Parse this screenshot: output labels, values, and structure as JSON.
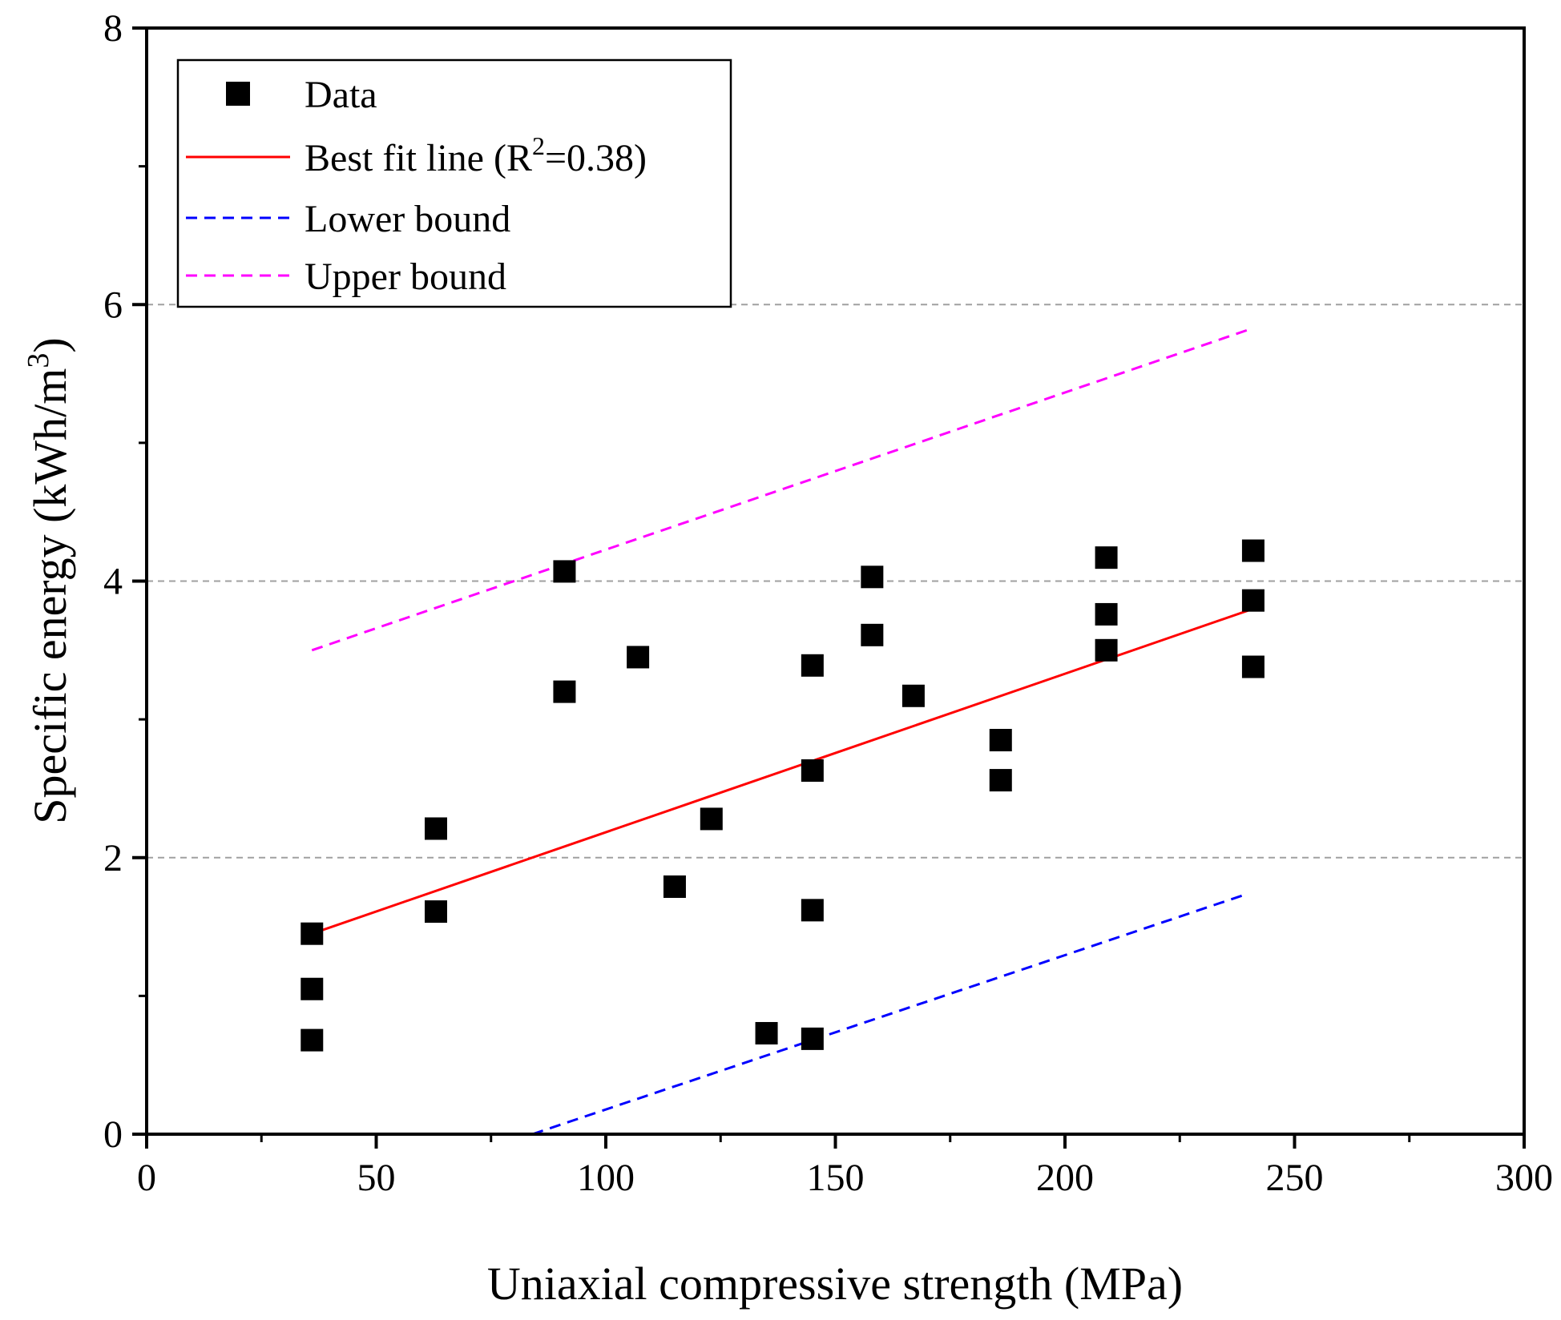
{
  "chart_data": {
    "type": "scatter",
    "xlabel": "Uniaxial compressive strength (MPa)",
    "ylabel": "Specific energy (kWh/m³)",
    "xlim": [
      0,
      300
    ],
    "ylim": [
      0,
      8
    ],
    "x_ticks": [
      "0",
      "50",
      "100",
      "150",
      "200",
      "250",
      "300"
    ],
    "y_ticks": [
      "0",
      "2",
      "4",
      "6",
      "8"
    ],
    "gridlines_y": [
      2,
      4,
      6
    ],
    "legend_position": "top-left",
    "series": [
      {
        "name": "Data",
        "kind": "scatter",
        "marker": "square",
        "color": "#000000",
        "x": [
          36,
          36,
          36,
          63,
          63,
          91,
          91,
          107,
          115,
          123,
          135,
          145,
          145,
          145,
          145,
          158,
          158,
          167,
          186,
          186,
          209,
          209,
          209,
          241,
          241,
          241
        ],
        "y": [
          1.45,
          1.05,
          0.68,
          2.21,
          1.61,
          4.07,
          3.2,
          3.45,
          1.79,
          2.28,
          0.73,
          3.39,
          2.63,
          1.62,
          0.69,
          4.03,
          3.61,
          3.17,
          2.85,
          2.56,
          4.17,
          3.76,
          3.5,
          4.22,
          3.86,
          3.38
        ]
      },
      {
        "name": "Best fit line (R²=0.38)",
        "kind": "line",
        "style": "solid",
        "color": "#ff0000",
        "x": [
          36,
          241
        ],
        "y": [
          1.45,
          3.8
        ]
      },
      {
        "name": "Lower bound",
        "kind": "line",
        "style": "dashed",
        "color": "#0000ff",
        "x": [
          84,
          239
        ],
        "y": [
          0,
          1.73
        ]
      },
      {
        "name": "Upper bound",
        "kind": "line",
        "style": "dashed",
        "color": "#ff00ff",
        "x": [
          36,
          241
        ],
        "y": [
          3.5,
          5.83
        ]
      }
    ],
    "legend": {
      "data": "Data",
      "best_fit_prefix": "Best fit line (R",
      "best_fit_sup": "2",
      "best_fit_suffix": "=0.38)",
      "lower": "Lower bound",
      "upper": "Upper bound"
    },
    "ylabel_parts": {
      "main": "Specific energy (kWh/m",
      "sup": "3",
      "close": ")"
    }
  }
}
